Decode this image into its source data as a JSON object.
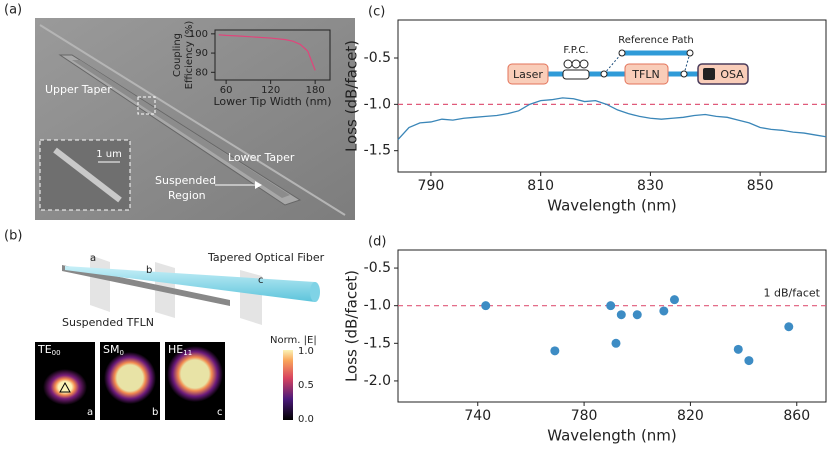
{
  "figure": {
    "panel_labels": [
      "(a)",
      "(b)",
      "(c)",
      "(d)"
    ],
    "panel_a": {
      "labels": [
        "Upper Taper",
        "Lower Taper",
        "Suspended",
        "Region",
        "1 um"
      ]
    },
    "panel_b": {
      "fiber_label": "Tapered Optical Fiber",
      "waveguide_label": "Suspended TFLN",
      "plane_labels": [
        "a",
        "b",
        "c"
      ],
      "modes": [
        {
          "main": "TE",
          "sub": "00",
          "tag": "a"
        },
        {
          "main": "SM",
          "sub": "0",
          "tag": "b"
        },
        {
          "main": "HE",
          "sub": "11",
          "tag": "c"
        }
      ],
      "colorbar": {
        "title": "Norm. |E|",
        "ticks": [
          "1.0",
          "0.5",
          "0.0"
        ]
      }
    },
    "panel_c_schematic": {
      "laser": "Laser",
      "fpc": "F.P.C.",
      "tfln": "TFLN",
      "osa": "OSA",
      "reference": "Reference Path"
    }
  },
  "chart_data": [
    {
      "type": "line",
      "x_label": "Lower Tip Width (nm)",
      "y_label": [
        "Coupling",
        "Efficiency (%)"
      ],
      "color": "#e0457b",
      "x": [
        50,
        60,
        80,
        100,
        120,
        140,
        150,
        160,
        170,
        180
      ],
      "y": [
        99.5,
        99.2,
        98.8,
        98.3,
        97.8,
        97,
        96.2,
        94.5,
        91,
        81
      ],
      "xlim": [
        45,
        200
      ],
      "ylim": [
        76,
        102
      ],
      "xticks": [
        60,
        120,
        180
      ],
      "yticks": [
        80,
        90,
        100
      ]
    },
    {
      "type": "line",
      "x_label": "Wavelength (nm)",
      "y_label": "Loss (dB/facet)",
      "color": "#3a86b8",
      "reference_line": -1,
      "reference_color": "#e05a7a",
      "x": [
        784,
        786,
        788,
        790,
        792,
        794,
        796,
        798,
        800,
        802,
        804,
        806,
        808,
        810,
        812,
        814,
        816,
        818,
        820,
        822,
        824,
        826,
        828,
        830,
        832,
        834,
        836,
        838,
        840,
        842,
        844,
        846,
        848,
        850,
        852,
        854,
        856,
        858,
        860,
        862
      ],
      "y": [
        -1.38,
        -1.25,
        -1.2,
        -1.19,
        -1.16,
        -1.17,
        -1.15,
        -1.14,
        -1.13,
        -1.12,
        -1.1,
        -1.07,
        -1.0,
        -0.96,
        -0.95,
        -0.93,
        -0.94,
        -0.97,
        -0.96,
        -1.0,
        -1.06,
        -1.1,
        -1.13,
        -1.15,
        -1.16,
        -1.15,
        -1.14,
        -1.12,
        -1.11,
        -1.13,
        -1.14,
        -1.17,
        -1.2,
        -1.25,
        -1.27,
        -1.28,
        -1.3,
        -1.31,
        -1.33,
        -1.35
      ],
      "xlim": [
        784,
        862
      ],
      "ylim": [
        -1.73,
        -0.09
      ],
      "xticks": [
        790,
        810,
        830,
        850
      ],
      "yticks": [
        -0.5,
        {
          "value": -1,
          "label": "-1.0"
        },
        -1.5
      ]
    },
    {
      "type": "scatter",
      "x_label": "Wavelength (nm)",
      "y_label": "Loss (dB/facet)",
      "color": "#3d8cc4",
      "reference_line": -1,
      "reference_color": "#e05a7a",
      "annotation": "1 dB/facet",
      "x": [
        743,
        769,
        790,
        792,
        794,
        800,
        810,
        814,
        838,
        842,
        857
      ],
      "y": [
        -1.0,
        -1.6,
        -1.0,
        -1.5,
        -1.12,
        -1.12,
        -1.07,
        -0.92,
        -1.58,
        -1.73,
        -1.28
      ],
      "xlim": [
        710,
        871
      ],
      "ylim": [
        -2.28,
        -0.26
      ],
      "xticks": [
        740,
        780,
        820,
        860
      ],
      "yticks": [
        -0.5,
        {
          "value": -1,
          "label": "-1.0"
        },
        -1.5,
        {
          "value": -2,
          "label": "-2.0"
        }
      ]
    }
  ]
}
